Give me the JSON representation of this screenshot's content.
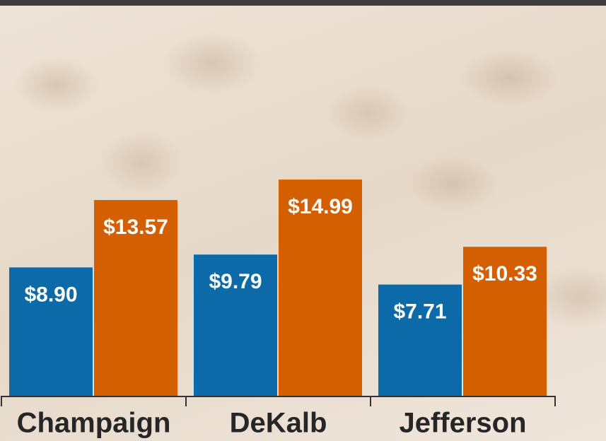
{
  "chart_data": {
    "type": "bar",
    "categories": [
      "Champaign",
      "DeKalb",
      "Jefferson"
    ],
    "series": [
      {
        "color": "#0d6aa8",
        "values": [
          8.9,
          9.79,
          7.71
        ],
        "value_labels": [
          "$8.90",
          "$9.79",
          "$7.71"
        ]
      },
      {
        "color": "#d35f00",
        "values": [
          13.57,
          14.99,
          10.33
        ],
        "value_labels": [
          "$13.57",
          "$14.99",
          "$10.33"
        ]
      }
    ],
    "ylim": [
      0,
      27
    ]
  }
}
